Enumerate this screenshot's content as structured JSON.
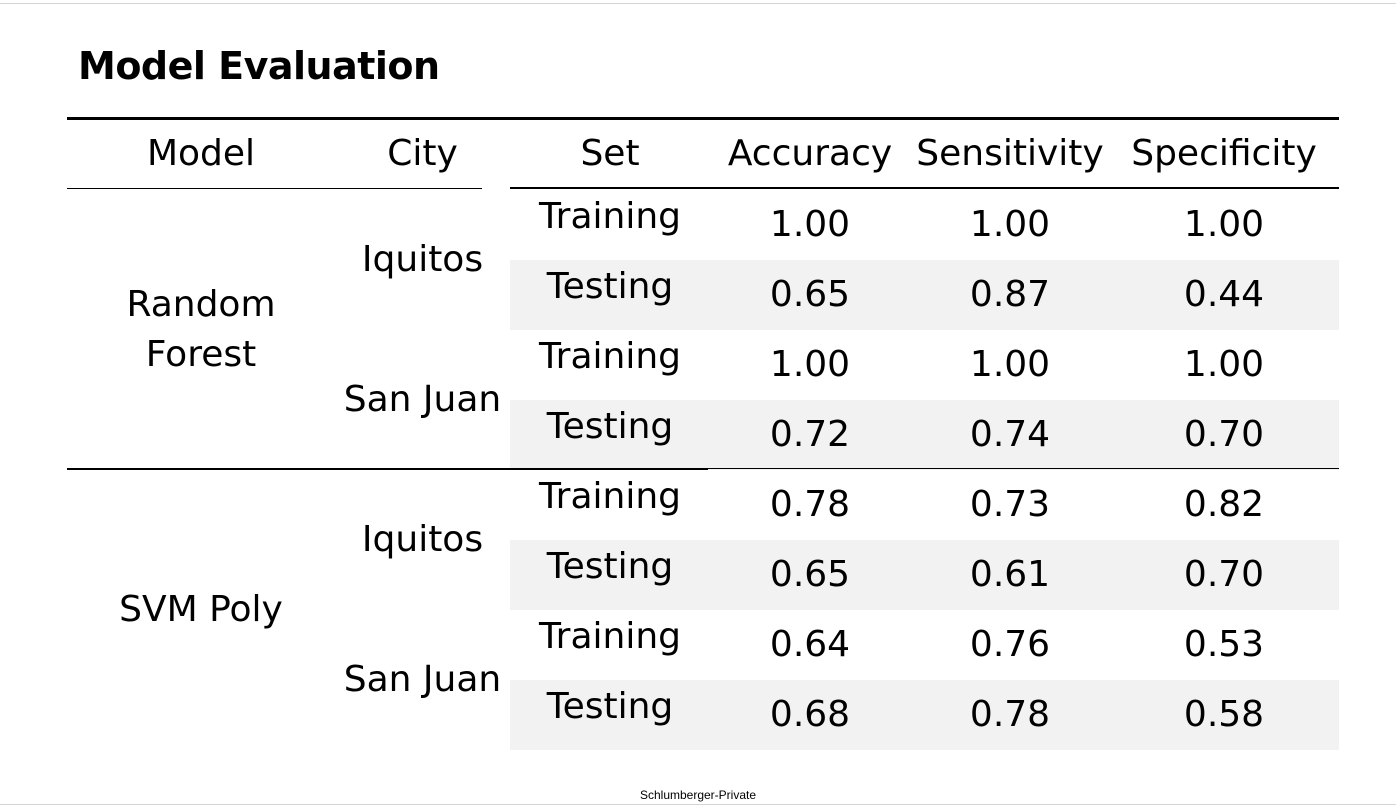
{
  "title": "Model Evaluation",
  "columns": [
    "Model",
    "City",
    "Set",
    "Accuracy",
    "Sensitivity",
    "Specificity"
  ],
  "models": [
    {
      "name_lines": [
        "Random",
        "Forest"
      ],
      "cities": [
        {
          "name": "Iquitos",
          "rows": [
            {
              "set": "Training",
              "accuracy": "1.00",
              "sensitivity": "1.00",
              "specificity": "1.00"
            },
            {
              "set": "Testing",
              "accuracy": "0.65",
              "sensitivity": "0.87",
              "specificity": "0.44"
            }
          ]
        },
        {
          "name": "San Juan",
          "rows": [
            {
              "set": "Training",
              "accuracy": "1.00",
              "sensitivity": "1.00",
              "specificity": "1.00"
            },
            {
              "set": "Testing",
              "accuracy": "0.72",
              "sensitivity": "0.74",
              "specificity": "0.70"
            }
          ]
        }
      ]
    },
    {
      "name_lines": [
        "SVM Poly"
      ],
      "cities": [
        {
          "name": "Iquitos",
          "rows": [
            {
              "set": "Training",
              "accuracy": "0.78",
              "sensitivity": "0.73",
              "specificity": "0.82"
            },
            {
              "set": "Testing",
              "accuracy": "0.65",
              "sensitivity": "0.61",
              "specificity": "0.70"
            }
          ]
        },
        {
          "name": "San Juan",
          "rows": [
            {
              "set": "Training",
              "accuracy": "0.64",
              "sensitivity": "0.76",
              "specificity": "0.53"
            },
            {
              "set": "Testing",
              "accuracy": "0.68",
              "sensitivity": "0.78",
              "specificity": "0.58"
            }
          ]
        }
      ]
    }
  ],
  "footer": "Schlumberger-Private",
  "colors": {
    "shade": "#f2f2f2",
    "rule": "#000000"
  }
}
